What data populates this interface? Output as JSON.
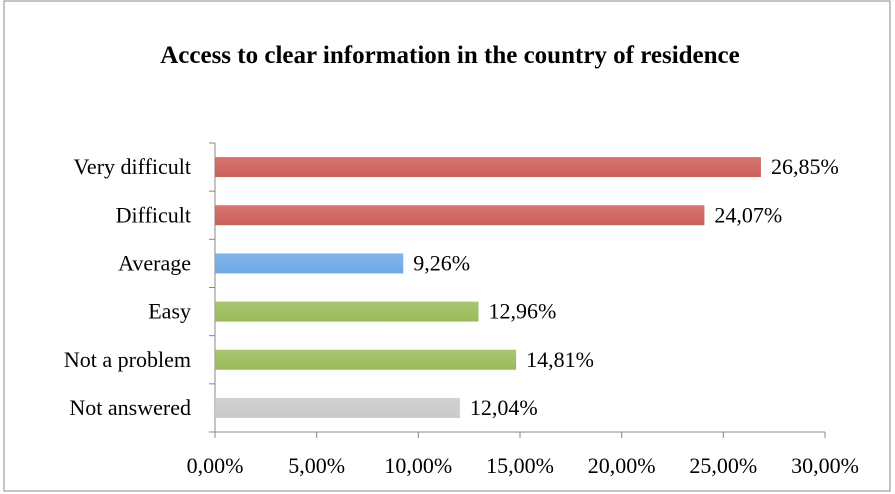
{
  "chart_data": {
    "type": "bar",
    "orientation": "horizontal",
    "title": "Access to clear information in the country of residence",
    "categories": [
      "Very difficult",
      "Difficult",
      "Average",
      "Easy",
      "Not a problem",
      "Not answered"
    ],
    "values": [
      26.85,
      24.07,
      9.26,
      12.96,
      14.81,
      12.04
    ],
    "value_labels": [
      "26,85%",
      "24,07%",
      "9,26%",
      "12,96%",
      "14,81%",
      "12,04%"
    ],
    "colors": [
      "#cd5f5a",
      "#cd5f5a",
      "#6fa8e6",
      "#9bbb59",
      "#9bbb59",
      "#c9c9c9"
    ],
    "xlim": [
      0,
      30
    ],
    "xticks": [
      {
        "value": 0,
        "label": "0,00%"
      },
      {
        "value": 5,
        "label": "5,00%"
      },
      {
        "value": 10,
        "label": "10,00%"
      },
      {
        "value": 15,
        "label": "15,00%"
      },
      {
        "value": 20,
        "label": "20,00%"
      },
      {
        "value": 25,
        "label": "25,00%"
      },
      {
        "value": 30,
        "label": "30,00%"
      }
    ],
    "grid": false
  }
}
